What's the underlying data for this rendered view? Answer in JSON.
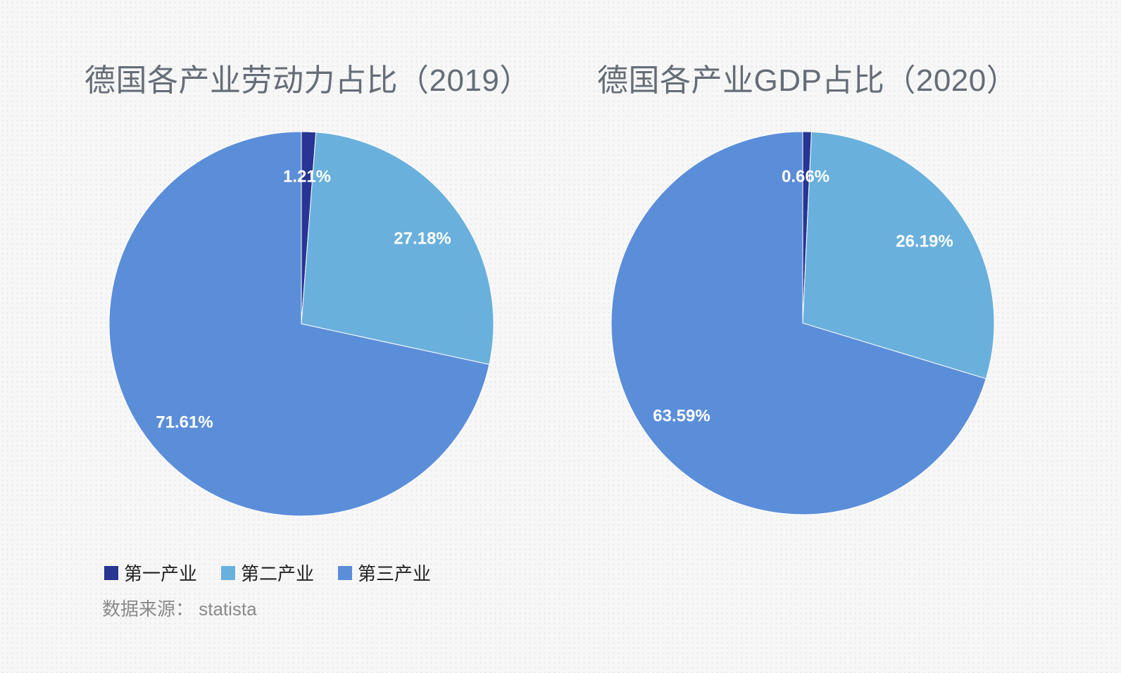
{
  "chart_data": [
    {
      "type": "pie",
      "title": "德国各产业劳动力占比（2019）",
      "categories": [
        "第一产业",
        "第二产业",
        "第三产业"
      ],
      "values": [
        1.21,
        27.18,
        71.61
      ],
      "labels": [
        "1.21%",
        "27.18%",
        "71.61%"
      ]
    },
    {
      "type": "pie",
      "title": "德国各产业GDP占比（2020）",
      "categories": [
        "第一产业",
        "第二产业",
        "第三产业"
      ],
      "values": [
        0.66,
        26.19,
        63.59
      ],
      "labels": [
        "0.66%",
        "26.19%",
        "63.59%"
      ]
    }
  ],
  "colors": [
    "#283593",
    "#6ab0dd",
    "#5b8ed9"
  ],
  "legend": [
    "第一产业",
    "第二产业",
    "第三产业"
  ],
  "source": "数据来源： statista"
}
